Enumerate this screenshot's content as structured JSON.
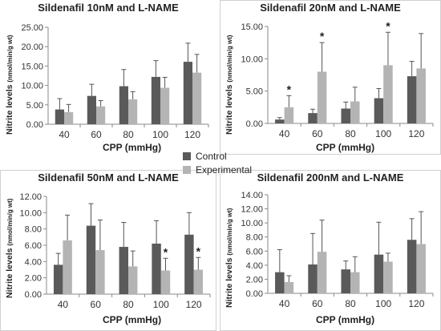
{
  "legend": {
    "control_label": "Control",
    "experimental_label": "Experimental",
    "control_color": "#5a5a5a",
    "experimental_color": "#b4b4b4"
  },
  "chart_data": [
    {
      "type": "bar",
      "title": "Sildenafil 10nM and L-NAME",
      "ylabel": "Nitrite levels",
      "ylabel_unit": "(nmol/min/g wt)",
      "xlabel": "CPP (mmHg)",
      "categories": [
        "40",
        "60",
        "80",
        "100",
        "120"
      ],
      "ylim": [
        0,
        25
      ],
      "yticks": [
        "0.00",
        "5.00",
        "10.00",
        "15.00",
        "20.00",
        "25.00"
      ],
      "series": [
        {
          "name": "Control",
          "values": [
            3.8,
            7.3,
            9.8,
            12.2,
            16.1
          ],
          "errors": [
            2.8,
            3.0,
            4.3,
            4.2,
            4.8
          ]
        },
        {
          "name": "Experimental",
          "values": [
            3.1,
            4.6,
            6.4,
            9.4,
            13.3
          ],
          "errors": [
            2.0,
            1.5,
            2.0,
            2.7,
            4.7
          ]
        }
      ],
      "significance": [
        false,
        false,
        false,
        false,
        false
      ]
    },
    {
      "type": "bar",
      "title": "Sildenafil 20nM and L-NAME",
      "ylabel": "Nitrite levels",
      "ylabel_unit": "(nmol/min/g wt)",
      "xlabel": "CPP (mmHg)",
      "categories": [
        "40",
        "60",
        "80",
        "100",
        "120"
      ],
      "ylim": [
        0,
        15
      ],
      "yticks": [
        "0.00",
        "5.00",
        "10.00",
        "15.00"
      ],
      "series": [
        {
          "name": "Control",
          "values": [
            0.6,
            1.6,
            2.3,
            3.9,
            7.3
          ],
          "errors": [
            0.3,
            0.6,
            1.0,
            1.5,
            2.3
          ]
        },
        {
          "name": "Experimental",
          "values": [
            2.5,
            8.0,
            3.4,
            9.0,
            8.5
          ],
          "errors": [
            1.8,
            4.5,
            2.2,
            5.1,
            5.4
          ]
        }
      ],
      "significance": [
        true,
        true,
        false,
        true,
        false
      ],
      "significance_mark": "*"
    },
    {
      "type": "bar",
      "title": "Sildenafil 50nM and L-NAME",
      "ylabel": "Nitrite levels",
      "ylabel_unit": "(nmol/min/g wt)",
      "xlabel": "CPP (mmHg)",
      "categories": [
        "40",
        "60",
        "80",
        "100",
        "120"
      ],
      "ylim": [
        0,
        12
      ],
      "yticks": [
        "0.00",
        "2.00",
        "4.00",
        "6.00",
        "8.00",
        "10.00",
        "12.00"
      ],
      "series": [
        {
          "name": "Control",
          "values": [
            3.6,
            8.4,
            5.8,
            6.2,
            7.3
          ],
          "errors": [
            1.4,
            2.7,
            3.0,
            2.8,
            2.7
          ]
        },
        {
          "name": "Experimental",
          "values": [
            6.6,
            5.4,
            3.4,
            2.9,
            3.0
          ],
          "errors": [
            3.1,
            3.7,
            1.9,
            1.5,
            1.5
          ]
        }
      ],
      "significance": [
        false,
        false,
        false,
        true,
        true
      ],
      "significance_mark": "*"
    },
    {
      "type": "bar",
      "title": "Sildenafil 200nM and L-NAME",
      "ylabel": "Nitrite levels",
      "ylabel_unit": "(nmol/min/g wt)",
      "xlabel": "CPP (mmHg)",
      "categories": [
        "40",
        "60",
        "80",
        "100",
        "120"
      ],
      "ylim": [
        0,
        14
      ],
      "yticks": [
        "0.00",
        "2.00",
        "4.00",
        "6.00",
        "8.00",
        "10.00",
        "12.00",
        "14.00"
      ],
      "series": [
        {
          "name": "Control",
          "values": [
            3.0,
            4.1,
            3.4,
            5.5,
            7.6
          ],
          "errors": [
            3.2,
            4.4,
            1.2,
            4.6,
            3.0
          ]
        },
        {
          "name": "Experimental",
          "values": [
            1.6,
            5.9,
            3.0,
            4.5,
            7.0
          ],
          "errors": [
            0.9,
            4.5,
            2.2,
            1.2,
            4.6
          ]
        }
      ],
      "significance": [
        false,
        false,
        false,
        false,
        false
      ]
    }
  ]
}
